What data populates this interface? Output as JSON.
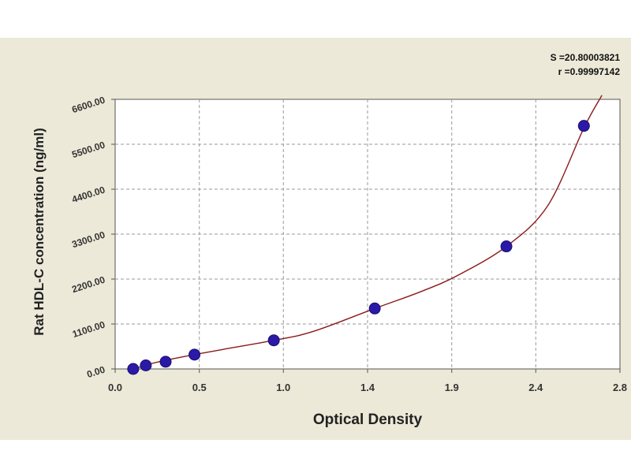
{
  "chart_data": {
    "type": "scatter",
    "title": "",
    "xlabel": "Optical Density",
    "ylabel": "Rat HDL-C concentration (ng/ml)",
    "xlim": [
      0.0,
      2.8
    ],
    "ylim": [
      0,
      6600
    ],
    "x_ticks": [
      "0.0",
      "0.5",
      "1.0",
      "1.4",
      "1.9",
      "2.4",
      "2.8"
    ],
    "x_tick_values": [
      0.0,
      0.467,
      0.933,
      1.4,
      1.867,
      2.333,
      2.8
    ],
    "y_ticks": [
      "0.00",
      "1100.00",
      "2200.00",
      "3300.00",
      "4400.00",
      "5500.00",
      "6600.00"
    ],
    "y_tick_values": [
      0,
      1100,
      2200,
      3300,
      4400,
      5500,
      6600
    ],
    "grid": true,
    "points": {
      "x": [
        0.1,
        0.17,
        0.28,
        0.44,
        0.88,
        1.44,
        2.17,
        2.6
      ],
      "y": [
        0,
        87,
        176,
        350,
        700,
        1480,
        3000,
        5950
      ]
    },
    "fit_curve": {
      "x": [
        0.0,
        0.1,
        0.2,
        0.3,
        0.44,
        0.6,
        0.88,
        1.1,
        1.44,
        1.7,
        1.9,
        2.17,
        2.4,
        2.6,
        2.7
      ],
      "y": [
        -100,
        0,
        130,
        230,
        350,
        480,
        700,
        920,
        1480,
        1900,
        2290,
        3000,
        4000,
        5900,
        6700
      ]
    },
    "stats": {
      "s": "S =20.80003821",
      "r": "r =0.99997142"
    },
    "colors": {
      "background": "#ece9d8",
      "plot_area": "#ffffff",
      "curve": "#8b1a1a",
      "marker": "#2b19a8",
      "grid": "#9a9a9a"
    }
  }
}
